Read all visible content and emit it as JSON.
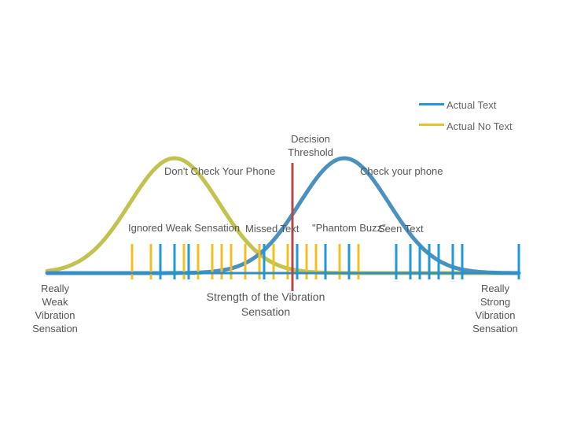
{
  "chart_data": {
    "type": "signal_detection_diagram",
    "legend": [
      {
        "label": "Actual Text",
        "color": "#1f9ad6"
      },
      {
        "label": "Actual No Text",
        "color": "#f0c020"
      }
    ],
    "distributions": [
      {
        "name": "no_text",
        "color": "#c3c24f",
        "mean": 0.27,
        "sd": 0.095,
        "peak": 1.0
      },
      {
        "name": "text",
        "color": "#4a90c0",
        "mean": 0.63,
        "sd": 0.095,
        "peak": 1.0
      }
    ],
    "threshold": {
      "position": 0.52,
      "color": "#b5474b",
      "label": "Decision Threshold"
    },
    "no_text_ticks": [
      0.18,
      0.22,
      0.29,
      0.32,
      0.35,
      0.37,
      0.39,
      0.42,
      0.45,
      0.48,
      0.51,
      0.55,
      0.57,
      0.59,
      0.62,
      0.66
    ],
    "text_ticks": [
      0.24,
      0.27,
      0.3,
      0.46,
      0.53,
      0.59,
      0.64,
      0.74,
      0.77,
      0.79,
      0.81,
      0.83,
      0.86,
      0.88,
      1.0
    ],
    "axis_color": "#2f8fc5"
  },
  "labels": {
    "threshold_label": "Decision\nThreshold",
    "dont_check": "Don't Check Your Phone",
    "check": "Check your phone",
    "ignored": "Ignored Weak Sensation",
    "missed": "Missed Text",
    "phantom": "\"Phantom Buzz\"",
    "seen": "Seen Text",
    "weak_end": "Really\nWeak\nVibration\nSensation",
    "axis_title": "Strength of the Vibration\nSensation",
    "strong_end": "Really\nStrong\nVibration\nSensation"
  }
}
